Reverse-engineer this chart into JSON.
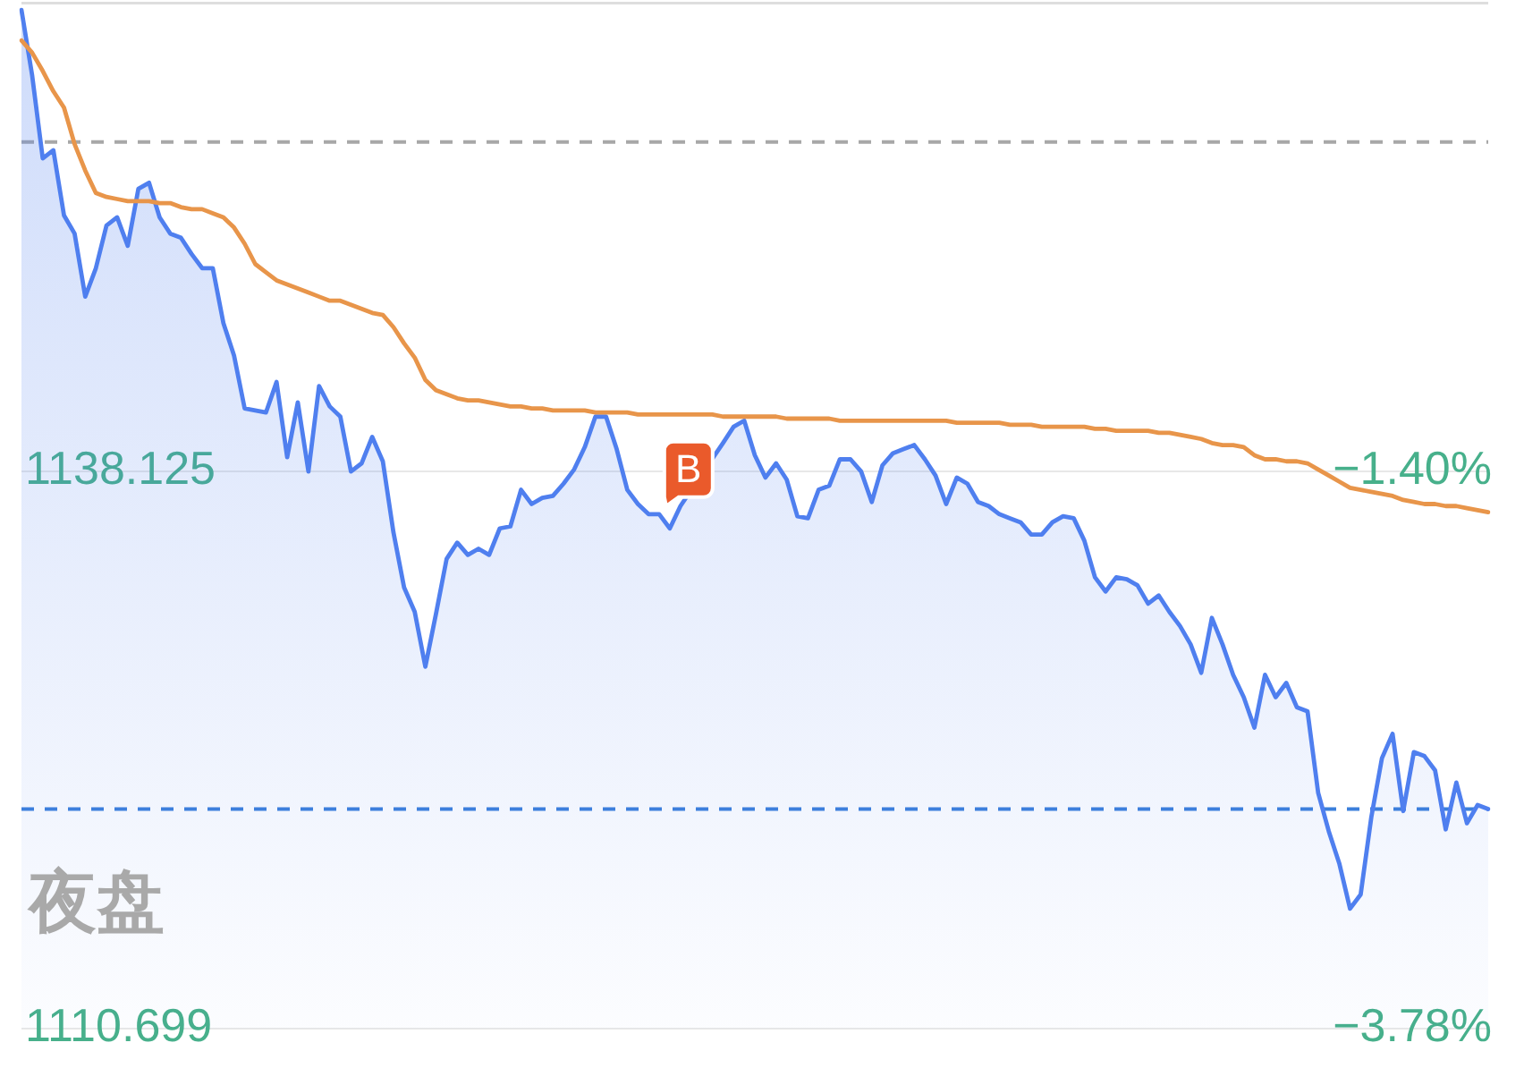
{
  "chart_data": {
    "type": "line",
    "categories": [
      null,
      null,
      null,
      null,
      null,
      null,
      null,
      null,
      null,
      null,
      null,
      null,
      null,
      null,
      null,
      null,
      null,
      null,
      null,
      null,
      null,
      null,
      null,
      null,
      null,
      null,
      null,
      null,
      null,
      null,
      null,
      null,
      null,
      null,
      null,
      null,
      null,
      null,
      null,
      null,
      null,
      null,
      null,
      null,
      null,
      null,
      null,
      null,
      null,
      null,
      null,
      null,
      null,
      null,
      null,
      null,
      null,
      null,
      null,
      null,
      null,
      null,
      null,
      null,
      null,
      null,
      null,
      null,
      null,
      null,
      null,
      null,
      null,
      null,
      null,
      null,
      null,
      null,
      null,
      null,
      null,
      null,
      null,
      null,
      null,
      null,
      null,
      null,
      null,
      null,
      null,
      null,
      null,
      null,
      null,
      null,
      null,
      null,
      null,
      null,
      null,
      null,
      null,
      null,
      null,
      null,
      null,
      null,
      null,
      null,
      null,
      null,
      null,
      null,
      null,
      null,
      null,
      null,
      null,
      null,
      null,
      null,
      null,
      null,
      null,
      null,
      null,
      null,
      null,
      null,
      null,
      null,
      null,
      null,
      null,
      null,
      null,
      null,
      null
    ],
    "series": [
      {
        "type": "area",
        "color": "#4f7fef",
        "values": [
          1160.8,
          1157.6,
          1153.5,
          1153.9,
          1150.7,
          1149.8,
          1146.7,
          1148.1,
          1150.2,
          1150.6,
          1149.2,
          1152.0,
          1152.3,
          1150.6,
          1149.8,
          1149.6,
          1148.8,
          1148.1,
          1148.1,
          1145.4,
          1143.8,
          1141.2,
          1141.1,
          1141.0,
          1142.5,
          1138.8,
          1141.5,
          1138.1,
          1142.3,
          1141.3,
          1140.8,
          1138.1,
          1138.5,
          1139.8,
          1138.6,
          1135.1,
          1132.4,
          1131.2,
          1128.5,
          1131.1,
          1133.8,
          1134.6,
          1134.0,
          1134.3,
          1134.0,
          1135.3,
          1135.4,
          1137.2,
          1136.5,
          1136.8,
          1136.9,
          1137.5,
          1138.2,
          1139.3,
          1140.8,
          1140.8,
          1139.2,
          1137.2,
          1136.5,
          1136.0,
          1136.0,
          1135.3,
          1136.4,
          null,
          null,
          null,
          1139.5,
          1140.3,
          1140.6,
          1138.9,
          1137.8,
          1138.5,
          1137.7,
          1135.9,
          1135.8,
          1137.2,
          1137.4,
          1138.7,
          1138.7,
          1138.1,
          1136.6,
          1138.4,
          1139.0,
          1139.2,
          1139.4,
          1138.7,
          1137.9,
          1136.5,
          1137.8,
          1137.5,
          1136.6,
          1136.4,
          1136.0,
          1135.8,
          1135.6,
          1135.0,
          1135.0,
          1135.6,
          1135.9,
          1135.8,
          1134.7,
          1132.9,
          1132.2,
          1132.9,
          1132.8,
          1132.5,
          1131.6,
          1132.0,
          1131.2,
          1130.5,
          1129.6,
          1128.2,
          1130.9,
          1129.6,
          1128.1,
          1127.0,
          1125.5,
          1128.1,
          1127.0,
          1127.7,
          1126.5,
          1126.3,
          1122.3,
          1120.4,
          1118.8,
          1116.6,
          1117.3,
          1121.1,
          1124.0,
          1125.2,
          1121.4,
          1124.3,
          1124.1,
          1123.4,
          1120.5,
          1122.8,
          1120.8,
          1121.7,
          1121.5
        ],
        "value_labels": [
          null,
          null,
          null,
          null,
          null,
          null,
          null,
          null,
          null,
          null,
          null,
          null,
          null,
          null,
          null,
          null,
          null,
          null,
          null,
          null,
          null,
          null,
          null,
          null,
          null,
          null,
          null,
          null,
          null,
          null,
          null,
          null,
          null,
          null,
          null,
          null,
          null,
          null,
          null,
          null,
          null,
          null,
          null,
          null,
          null,
          null,
          null,
          null,
          null,
          null,
          null,
          null,
          null,
          null,
          null,
          null,
          null,
          null,
          null,
          null,
          null,
          null,
          "B",
          null,
          null,
          null,
          null,
          null,
          null,
          null,
          null,
          null,
          null,
          null,
          null,
          null,
          null,
          null,
          null,
          null,
          null,
          null,
          null,
          null,
          null,
          null,
          null,
          null,
          null,
          null,
          null,
          null,
          null,
          null,
          null,
          null,
          null,
          null,
          null,
          null,
          null,
          null,
          null,
          null,
          null,
          null,
          null,
          null,
          null,
          null,
          null,
          null,
          null,
          null,
          null,
          null,
          null,
          null,
          null,
          null,
          null,
          null,
          null,
          null,
          null,
          null,
          null,
          null,
          null,
          null,
          null,
          null,
          null,
          null,
          null,
          null,
          null,
          null,
          null
        ]
      },
      {
        "type": "line",
        "color": "#e8954a",
        "values": [
          1159.3,
          1158.7,
          1157.8,
          1156.8,
          1156.0,
          1154.2,
          1152.9,
          1151.8,
          1151.6,
          1151.5,
          1151.4,
          1151.4,
          1151.4,
          1151.3,
          1151.3,
          1151.1,
          1151.0,
          1151.0,
          1150.8,
          1150.6,
          1150.1,
          1149.3,
          1148.3,
          1147.9,
          1147.5,
          1147.3,
          1147.1,
          1146.9,
          1146.7,
          1146.5,
          1146.5,
          1146.3,
          1146.1,
          1145.9,
          1145.8,
          1145.2,
          1144.4,
          1143.7,
          1142.6,
          1142.1,
          1141.9,
          1141.7,
          1141.6,
          1141.6,
          1141.5,
          1141.4,
          1141.3,
          1141.3,
          1141.2,
          1141.2,
          1141.1,
          1141.1,
          1141.1,
          1141.1,
          1141.0,
          1141.0,
          1141.0,
          1141.0,
          1140.9,
          1140.9,
          1140.9,
          1140.9,
          1140.9,
          1140.9,
          1140.9,
          1140.9,
          1140.8,
          1140.8,
          1140.8,
          1140.8,
          1140.8,
          1140.8,
          1140.7,
          1140.7,
          1140.7,
          1140.7,
          1140.7,
          1140.6,
          1140.6,
          1140.6,
          1140.6,
          1140.6,
          1140.6,
          1140.6,
          1140.6,
          1140.6,
          1140.6,
          1140.6,
          1140.5,
          1140.5,
          1140.5,
          1140.5,
          1140.5,
          1140.4,
          1140.4,
          1140.4,
          1140.3,
          1140.3,
          1140.3,
          1140.3,
          1140.3,
          1140.2,
          1140.2,
          1140.1,
          1140.1,
          1140.1,
          1140.1,
          1140.0,
          1140.0,
          1139.9,
          1139.8,
          1139.7,
          1139.5,
          1139.4,
          1139.4,
          1139.3,
          1138.9,
          1138.7,
          1138.7,
          1138.6,
          1138.6,
          1138.5,
          1138.2,
          1137.9,
          1137.6,
          1137.3,
          1137.2,
          1137.1,
          1137.0,
          1136.9,
          1136.7,
          1136.6,
          1136.5,
          1136.5,
          1136.4,
          1136.4,
          1136.3,
          1136.2,
          1136.1
        ]
      }
    ],
    "ylim": [
      1110.699,
      1161.2
    ],
    "yticks": [
      1110.699,
      1138.125
    ],
    "y2lim": [
      -3.78,
      0.6
    ],
    "y2ticks": [
      {
        "value": -3.78,
        "label": "−3.78%"
      },
      {
        "value": -1.4,
        "label": "−1.40%"
      }
    ],
    "grid": "y",
    "marker": "none",
    "ref_lines": [
      {
        "axis": "y",
        "value": 1154.3,
        "color": "#a8a8a8",
        "line_style": "dashed"
      },
      {
        "axis": "y",
        "value": 1121.5,
        "color": "#3b7fdb",
        "line_style": "dashed"
      }
    ],
    "annotations": [
      "夜盘"
    ]
  }
}
